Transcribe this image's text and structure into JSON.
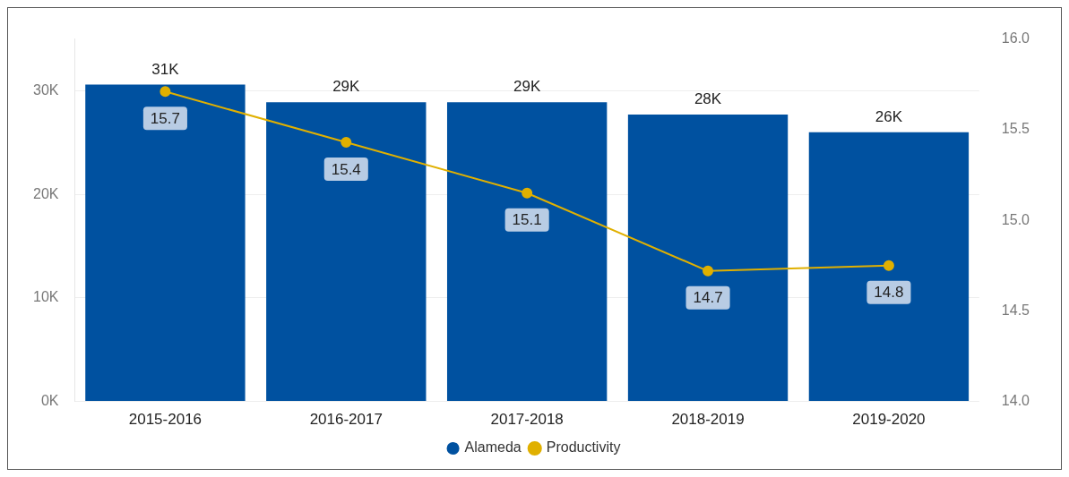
{
  "chart_data": {
    "type": "bar",
    "categories": [
      "2015-2016",
      "2016-2017",
      "2017-2018",
      "2018-2019",
      "2019-2020"
    ],
    "series": [
      {
        "name": "Alameda",
        "color": "#0051a0",
        "values": [
          30600,
          28900,
          28900,
          27700,
          26000
        ],
        "value_labels": [
          "31K",
          "29K",
          "29K",
          "28K",
          "26K"
        ]
      },
      {
        "name": "Productivity",
        "type": "line",
        "axis": "y2",
        "color": "#e0b000",
        "marker": "circle",
        "values": [
          15.71,
          15.43,
          15.15,
          14.72,
          14.75
        ],
        "value_labels": [
          "15.7",
          "15.4",
          "15.1",
          "14.7",
          "14.8"
        ]
      }
    ],
    "ylim": [
      0,
      35000
    ],
    "yticks": [
      {
        "value": 0,
        "label": "0K"
      },
      {
        "value": 10000,
        "label": "10K"
      },
      {
        "value": 20000,
        "label": "20K"
      },
      {
        "value": 30000,
        "label": "30K"
      }
    ],
    "y2lim": [
      14,
      16
    ],
    "y2ticks": [
      {
        "value": 14,
        "label": "14.0"
      },
      {
        "value": 14.5,
        "label": "14.5"
      },
      {
        "value": 15,
        "label": "15.0"
      },
      {
        "value": 15.5,
        "label": "15.5"
      },
      {
        "value": 16,
        "label": "16.0"
      }
    ],
    "grid": "y",
    "legend": "bottom"
  }
}
